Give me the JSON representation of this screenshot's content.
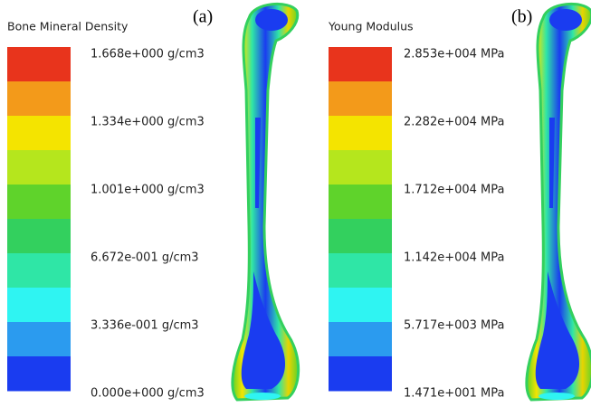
{
  "panels": [
    {
      "label": "(a)",
      "legend_title": "Bone Mineral Density",
      "tick_labels": [
        "1.668e+000 g/cm3",
        "1.334e+000 g/cm3",
        "1.001e+000 g/cm3",
        "6.672e-001 g/cm3",
        "3.336e-001 g/cm3",
        "0.000e+000 g/cm3"
      ]
    },
    {
      "label": "(b)",
      "legend_title": "Young Modulus",
      "tick_labels": [
        "2.853e+004 MPa",
        "2.282e+004 MPa",
        "1.712e+004 MPa",
        "1.142e+004 MPa",
        "5.717e+003 MPa",
        "1.471e+001 MPa"
      ]
    }
  ],
  "color_bands": [
    "#e8341c",
    "#f39a1a",
    "#f4e400",
    "#b5e61d",
    "#5fd32b",
    "#33d05e",
    "#2fe6a6",
    "#2ff4f2",
    "#2b9bef",
    "#1a3cf0"
  ]
}
